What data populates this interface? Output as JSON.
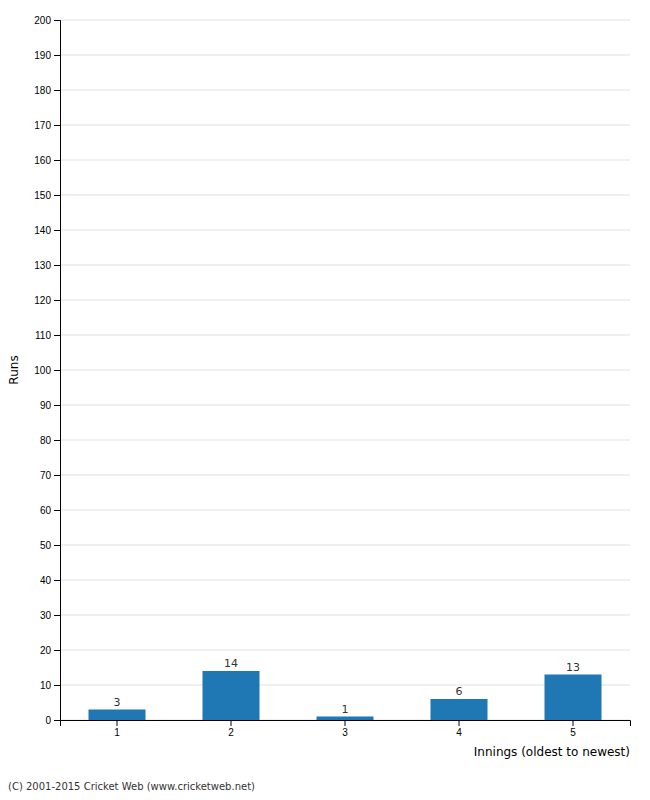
{
  "chart_data": {
    "type": "bar",
    "xlabel": "Innings (oldest to newest)",
    "ylabel": "Runs",
    "categories": [
      1,
      2,
      3,
      4,
      5
    ],
    "values": [
      3,
      14,
      1,
      6,
      13
    ],
    "ylim": [
      0,
      200
    ],
    "yticks": [
      0,
      10,
      20,
      30,
      40,
      50,
      60,
      70,
      80,
      90,
      100,
      110,
      120,
      130,
      140,
      150,
      160,
      170,
      180,
      190,
      200
    ],
    "grid": true,
    "data_labels": true,
    "annotations": [
      "(C) 2001-2015 Cricket Web (www.cricketweb.net)"
    ]
  }
}
